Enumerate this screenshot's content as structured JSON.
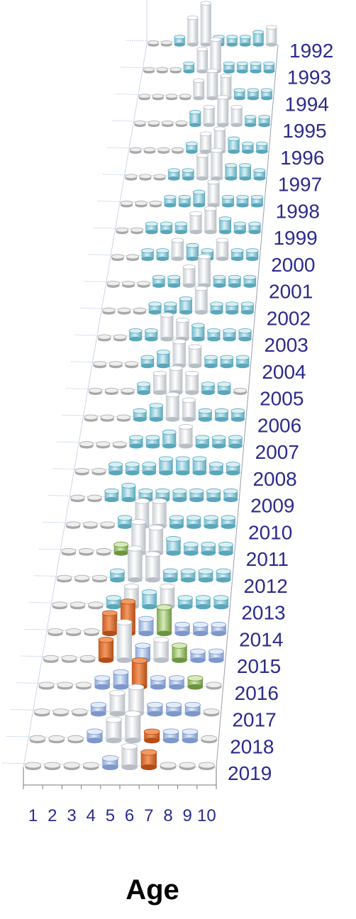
{
  "chart_data": {
    "type": "bar",
    "style": "3d-cylinder",
    "xlabel": "Age",
    "ylabel": "",
    "x_categories": [
      "1",
      "2",
      "3",
      "4",
      "5",
      "6",
      "7",
      "8",
      "9",
      "10"
    ],
    "y_categories": [
      "1992",
      "1993",
      "1994",
      "1995",
      "1996",
      "1997",
      "1998",
      "1999",
      "2000",
      "2001",
      "2002",
      "2003",
      "2004",
      "2005",
      "2006",
      "2007",
      "2008",
      "2009",
      "2010",
      "2011",
      "2012",
      "2013",
      "2014",
      "2015",
      "2016",
      "2017",
      "2018",
      "2019"
    ],
    "values": [
      [
        0,
        0,
        1,
        5,
        8,
        1,
        1,
        1,
        2,
        3
      ],
      [
        0,
        0,
        0,
        1,
        4,
        6,
        1,
        1,
        1,
        1
      ],
      [
        0,
        0,
        0,
        0,
        3,
        5,
        4,
        1,
        1,
        1
      ],
      [
        0,
        0,
        0,
        0,
        2,
        3,
        5,
        3,
        1,
        1
      ],
      [
        0,
        0,
        0,
        0,
        1,
        3,
        4,
        2,
        1,
        1
      ],
      [
        0,
        0,
        0,
        1,
        1,
        4,
        5,
        2,
        2,
        1
      ],
      [
        0,
        0,
        0,
        1,
        1,
        2,
        4,
        1,
        1,
        1
      ],
      [
        0,
        0,
        1,
        1,
        1,
        3,
        4,
        2,
        1,
        1
      ],
      [
        0,
        0,
        1,
        1,
        3,
        2,
        1,
        3,
        1,
        1
      ],
      [
        0,
        0,
        0,
        1,
        1,
        3,
        5,
        1,
        1,
        1
      ],
      [
        0,
        0,
        0,
        1,
        1,
        2,
        4,
        1,
        1,
        1
      ],
      [
        0,
        0,
        1,
        1,
        4,
        3,
        2,
        1,
        1,
        1
      ],
      [
        0,
        0,
        0,
        1,
        2,
        4,
        3,
        1,
        1,
        1
      ],
      [
        0,
        0,
        0,
        1,
        3,
        4,
        3,
        1,
        1,
        0
      ],
      [
        0,
        0,
        0,
        1,
        2,
        4,
        3,
        1,
        1,
        1
      ],
      [
        0,
        0,
        0,
        1,
        1,
        2,
        3,
        1,
        1,
        1
      ],
      [
        0,
        0,
        1,
        1,
        1,
        2,
        2,
        2,
        1,
        1
      ],
      [
        0,
        0,
        1,
        2,
        1,
        1,
        1,
        1,
        1,
        1
      ],
      [
        0,
        0,
        0,
        1,
        4,
        4,
        1,
        1,
        1,
        1
      ],
      [
        0,
        0,
        0,
        1,
        5,
        4,
        2,
        1,
        1,
        1
      ],
      [
        0,
        0,
        0,
        1,
        5,
        4,
        1,
        1,
        1,
        1
      ],
      [
        0,
        0,
        0,
        1,
        3,
        2,
        3,
        1,
        1,
        1
      ],
      [
        0,
        0,
        0,
        3,
        5,
        2,
        4,
        1,
        1,
        1
      ],
      [
        0,
        0,
        0,
        3,
        6,
        2,
        3,
        2,
        1,
        1
      ],
      [
        0,
        0,
        0,
        1,
        2,
        4,
        1,
        1,
        1,
        0
      ],
      [
        0,
        0,
        0,
        1,
        3,
        4,
        1,
        1,
        1,
        0
      ],
      [
        0,
        0,
        0,
        1,
        3,
        4,
        1,
        1,
        1,
        0
      ],
      [
        0,
        0,
        0,
        0,
        1,
        3,
        2,
        0,
        0,
        0
      ]
    ],
    "colors": {
      "default_top": "#7fc4d6",
      "default_side": "#9fd4e1",
      "gray": "#d9d9d9",
      "white": "#f4f6f8",
      "orange": "#e7753a",
      "green": "#9bc46a",
      "blue": "#a9c0e8"
    },
    "grid": true,
    "legend": "none"
  }
}
